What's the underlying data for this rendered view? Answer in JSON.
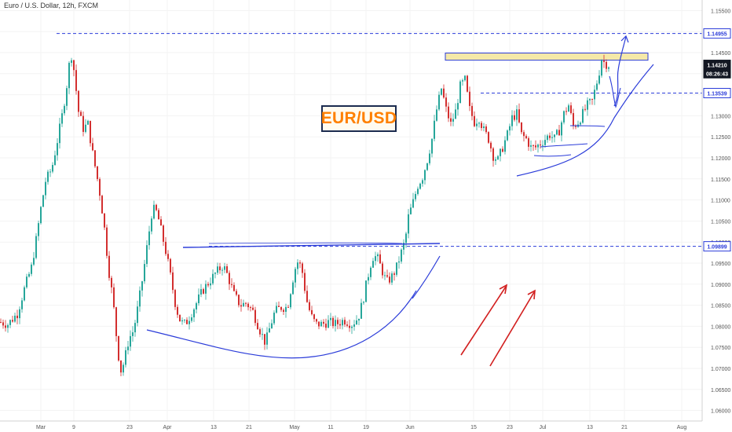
{
  "header": {
    "title": "Euro / U.S. Dollar, 12h, FXCM"
  },
  "annotation": {
    "badge_text": "EUR/USD"
  },
  "colors": {
    "up": "#26a69a",
    "down": "#d32f2f",
    "drawing": "#2b3cd9",
    "arrow": "#d21f1f",
    "highlight": "#f5e9a8"
  },
  "chart_data": {
    "type": "candlestick",
    "ylim": [
      1.0575,
      1.1575
    ],
    "y_ticks": [
      "1.15500",
      "1.15000",
      "1.14500",
      "1.14000",
      "1.13500",
      "1.13000",
      "1.12500",
      "1.12000",
      "1.11500",
      "1.11000",
      "1.10500",
      "1.10000",
      "1.09500",
      "1.09000",
      "1.08500",
      "1.08000",
      "1.07500",
      "1.07000",
      "1.06500",
      "1.06000"
    ],
    "x_ticks": [
      "Mar",
      "9",
      "23",
      "Apr",
      "13",
      "21",
      "May",
      "11",
      "19",
      "Jun",
      "15",
      "23",
      "Jul",
      "13",
      "21",
      "Aug"
    ],
    "price_labels": [
      {
        "text": "1.14955",
        "value": 1.14955,
        "style": "blue"
      },
      {
        "text": "1.14210",
        "value": 1.1421,
        "style": "dark"
      },
      {
        "text": "08:26:43",
        "value": 1.1401,
        "style": "dark"
      },
      {
        "text": "1.13539",
        "value": 1.13539,
        "style": "blue"
      },
      {
        "text": "1.09899",
        "value": 1.09899,
        "style": "blue"
      }
    ],
    "horizontal_levels": [
      1.14955,
      1.13539,
      1.09899
    ],
    "resistance_zone": [
      1.1432,
      1.1449
    ],
    "path": [
      [
        0,
        1.081
      ],
      [
        10,
        1.0805
      ],
      [
        22,
        1.083
      ],
      [
        32,
        1.0895
      ],
      [
        40,
        1.094
      ],
      [
        46,
        1.1005
      ],
      [
        52,
        1.108
      ],
      [
        58,
        1.1145
      ],
      [
        66,
        1.1175
      ],
      [
        74,
        1.125
      ],
      [
        80,
        1.131
      ],
      [
        86,
        1.1385
      ],
      [
        90,
        1.1455
      ],
      [
        94,
        1.141
      ],
      [
        100,
        1.131
      ],
      [
        106,
        1.127
      ],
      [
        112,
        1.128
      ],
      [
        118,
        1.121
      ],
      [
        126,
        1.113
      ],
      [
        132,
        1.105
      ],
      [
        138,
        1.094
      ],
      [
        144,
        1.086
      ],
      [
        150,
        1.074
      ],
      [
        154,
        1.0695
      ],
      [
        158,
        1.0715
      ],
      [
        164,
        1.077
      ],
      [
        170,
        1.079
      ],
      [
        176,
        1.085
      ],
      [
        182,
        1.092
      ],
      [
        188,
        1.1
      ],
      [
        194,
        1.108
      ],
      [
        200,
        1.107
      ],
      [
        206,
        1.102
      ],
      [
        212,
        1.097
      ],
      [
        218,
        1.091
      ],
      [
        224,
        1.0845
      ],
      [
        230,
        1.081
      ],
      [
        236,
        1.0805
      ],
      [
        242,
        1.0825
      ],
      [
        250,
        1.0855
      ],
      [
        258,
        1.0885
      ],
      [
        266,
        1.0905
      ],
      [
        274,
        1.0925
      ],
      [
        284,
        1.0945
      ],
      [
        290,
        1.092
      ],
      [
        298,
        1.0875
      ],
      [
        306,
        1.085
      ],
      [
        314,
        1.0855
      ],
      [
        322,
        1.0835
      ],
      [
        330,
        1.0795
      ],
      [
        338,
        1.076
      ],
      [
        344,
        1.08
      ],
      [
        350,
        1.0835
      ],
      [
        358,
        1.0845
      ],
      [
        366,
        1.0845
      ],
      [
        372,
        1.0905
      ],
      [
        378,
        1.0955
      ],
      [
        384,
        1.094
      ],
      [
        390,
        1.0865
      ],
      [
        396,
        1.0825
      ],
      [
        402,
        1.0805
      ],
      [
        410,
        1.0805
      ],
      [
        418,
        1.081
      ],
      [
        428,
        1.0805
      ],
      [
        438,
        1.0815
      ],
      [
        448,
        1.0805
      ],
      [
        456,
        1.082
      ],
      [
        462,
        1.086
      ],
      [
        468,
        1.0915
      ],
      [
        474,
        1.0965
      ],
      [
        480,
        1.0965
      ],
      [
        486,
        1.0935
      ],
      [
        492,
        1.0905
      ],
      [
        498,
        1.0915
      ],
      [
        504,
        1.0935
      ],
      [
        510,
        1.097
      ],
      [
        516,
        1.1005
      ],
      [
        520,
        1.106
      ],
      [
        526,
        1.1095
      ],
      [
        532,
        1.1135
      ],
      [
        538,
        1.1155
      ],
      [
        544,
        1.1195
      ],
      [
        550,
        1.1245
      ],
      [
        556,
        1.1315
      ],
      [
        562,
        1.1365
      ],
      [
        568,
        1.1315
      ],
      [
        574,
        1.128
      ],
      [
        580,
        1.131
      ],
      [
        586,
        1.137
      ],
      [
        592,
        1.1385
      ],
      [
        598,
        1.1315
      ],
      [
        604,
        1.1285
      ],
      [
        610,
        1.1295
      ],
      [
        616,
        1.1265
      ],
      [
        622,
        1.1245
      ],
      [
        628,
        1.1205
      ],
      [
        634,
        1.1195
      ],
      [
        640,
        1.1225
      ],
      [
        646,
        1.1255
      ],
      [
        652,
        1.1295
      ],
      [
        658,
        1.1305
      ],
      [
        664,
        1.1255
      ],
      [
        670,
        1.1245
      ],
      [
        676,
        1.1225
      ],
      [
        682,
        1.1225
      ],
      [
        688,
        1.1235
      ],
      [
        694,
        1.1245
      ],
      [
        700,
        1.1255
      ],
      [
        706,
        1.1245
      ],
      [
        712,
        1.1265
      ],
      [
        718,
        1.1305
      ],
      [
        724,
        1.1325
      ],
      [
        730,
        1.1275
      ],
      [
        736,
        1.1285
      ],
      [
        742,
        1.1305
      ],
      [
        748,
        1.1325
      ],
      [
        754,
        1.1335
      ],
      [
        758,
        1.1365
      ],
      [
        762,
        1.1395
      ],
      [
        766,
        1.1435
      ],
      [
        770,
        1.1425
      ],
      [
        775,
        1.1421
      ]
    ]
  }
}
